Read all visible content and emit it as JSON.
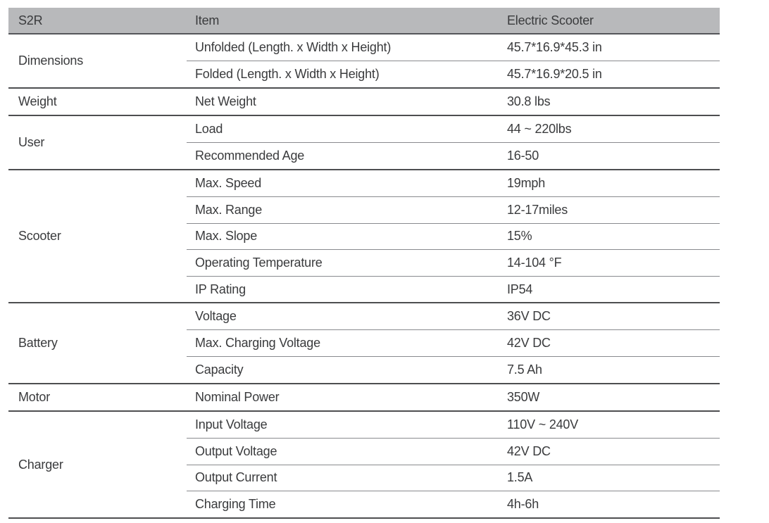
{
  "table": {
    "header": {
      "model": "S2R",
      "item_label": "Item",
      "value_label": "Electric Scooter"
    },
    "groups": [
      {
        "category": "Dimensions",
        "rows": [
          {
            "item": "Unfolded (Length. x Width x Height)",
            "value": "45.7*16.9*45.3 in"
          },
          {
            "item": "Folded (Length. x Width x Height)",
            "value": "45.7*16.9*20.5 in"
          }
        ]
      },
      {
        "category": "Weight",
        "rows": [
          {
            "item": "Net Weight",
            "value": "30.8 lbs"
          }
        ]
      },
      {
        "category": "User",
        "rows": [
          {
            "item": "Load",
            "value": "44 ~ 220lbs"
          },
          {
            "item": "Recommended Age",
            "value": "16-50"
          }
        ]
      },
      {
        "category": "Scooter",
        "rows": [
          {
            "item": "Max. Speed",
            "value": "19mph"
          },
          {
            "item": "Max. Range",
            "value": "12-17miles"
          },
          {
            "item": "Max. Slope",
            "value": "15%"
          },
          {
            "item": "Operating Temperature",
            "value": "14-104 °F"
          },
          {
            "item": "IP Rating",
            "value": "IP54"
          }
        ]
      },
      {
        "category": "Battery",
        "rows": [
          {
            "item": "Voltage",
            "value": "36V DC"
          },
          {
            "item": "Max. Charging Voltage",
            "value": "42V DC"
          },
          {
            "item": "Capacity",
            "value": "7.5 Ah"
          }
        ]
      },
      {
        "category": "Motor",
        "rows": [
          {
            "item": "Nominal Power",
            "value": "350W"
          }
        ]
      },
      {
        "category": "Charger",
        "rows": [
          {
            "item": "Input Voltage",
            "value": "110V ~ 240V"
          },
          {
            "item": "Output Voltage",
            "value": "42V DC"
          },
          {
            "item": "Output Current",
            "value": "1.5A"
          },
          {
            "item": "Charging Time",
            "value": "4h-6h"
          }
        ]
      }
    ],
    "colors": {
      "header_bg": "#b8b9bb",
      "text": "#3a3b3d",
      "group_border": "#4d4e50",
      "row_border": "#898a8e",
      "header_border": "#55565a"
    }
  }
}
